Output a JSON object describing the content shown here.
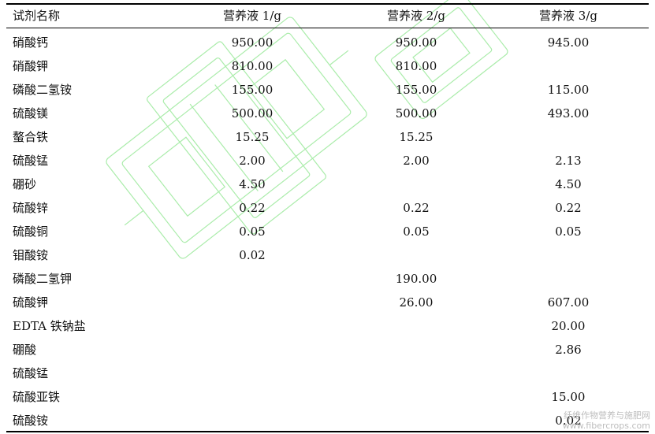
{
  "table": {
    "headers": [
      "试剂名称",
      "营养液 1/g",
      "营养液 2/g",
      "营养液 3/g"
    ],
    "rows": [
      [
        "硝酸钙",
        "950.00",
        "950.00",
        "945.00"
      ],
      [
        "硝酸钾",
        "810.00",
        "810.00",
        ""
      ],
      [
        "磷酸二氢铵",
        "155.00",
        "155.00",
        "115.00"
      ],
      [
        "硫酸镁",
        "500.00",
        "500.00",
        "493.00"
      ],
      [
        "螯合铁",
        "15.25",
        "15.25",
        ""
      ],
      [
        "硫酸锰",
        "2.00",
        "2.00",
        "2.13"
      ],
      [
        "硼砂",
        "4.50",
        "",
        "4.50"
      ],
      [
        "硫酸锌",
        "0.22",
        "0.22",
        "0.22"
      ],
      [
        "硫酸铜",
        "0.05",
        "0.05",
        "0.05"
      ],
      [
        "钼酸铵",
        "0.02",
        "",
        ""
      ],
      [
        "磷酸二氢钾",
        "",
        "190.00",
        ""
      ],
      [
        "硫酸钾",
        "",
        "26.00",
        "607.00"
      ],
      [
        "EDTA 铁钠盐",
        "",
        "",
        "20.00"
      ],
      [
        "硼酸",
        "",
        "",
        "2.86"
      ],
      [
        "硫酸锰",
        "",
        "",
        ""
      ],
      [
        "硫酸亚铁",
        "",
        "",
        "15.00"
      ],
      [
        "硫酸铵",
        "",
        "",
        "0.02"
      ]
    ]
  },
  "watermark": {
    "credit_line1": "纤维作物营养与施肥网",
    "credit_line2": "www.fibercrops.com",
    "logo_color": "#7de07d"
  }
}
